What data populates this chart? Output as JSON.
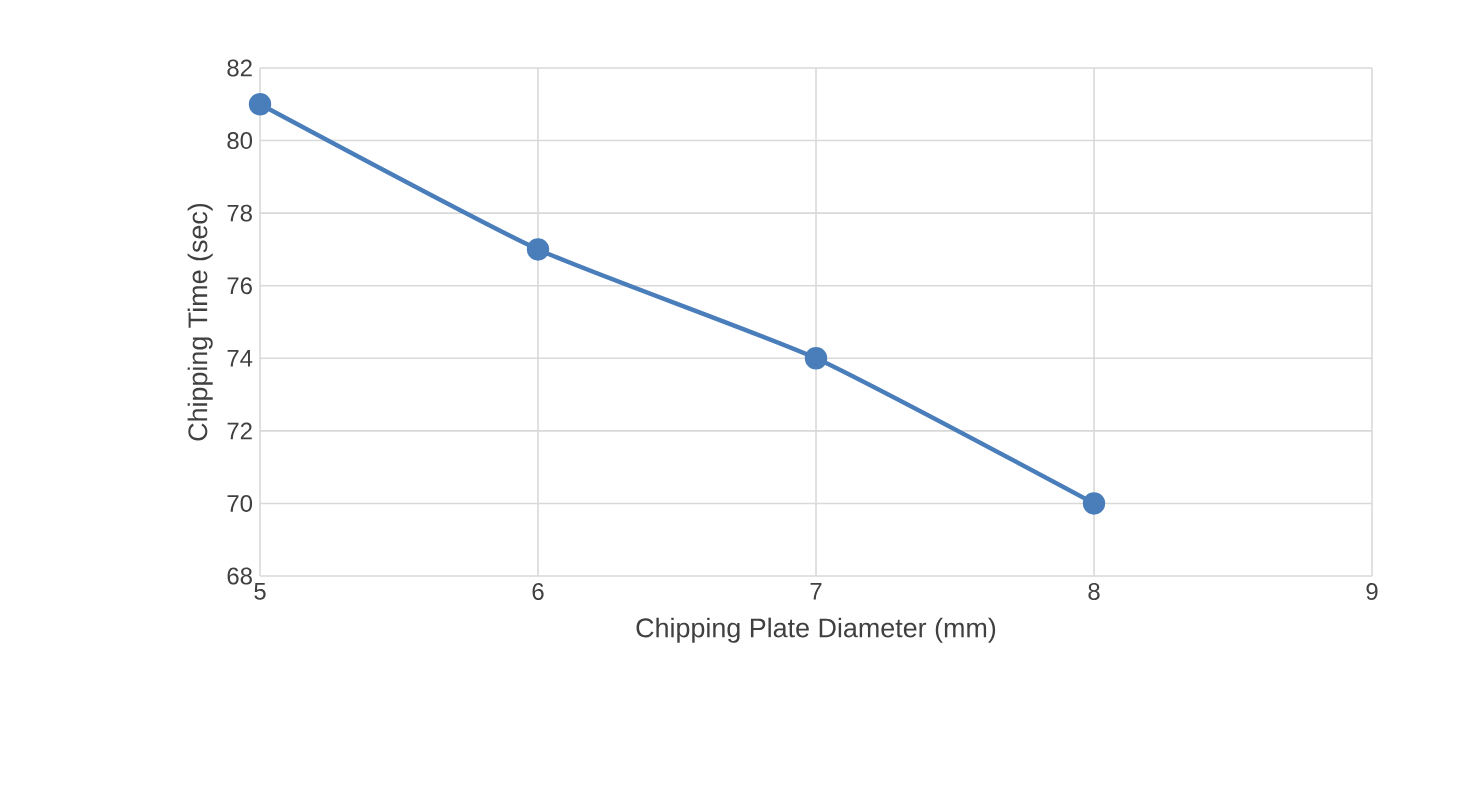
{
  "chart_data": {
    "type": "line",
    "xlabel": "Chipping Plate Diameter (mm)",
    "ylabel": "Chipping Time (sec)",
    "x": [
      5,
      6,
      7,
      8
    ],
    "series": [
      {
        "color": "#4a7ebb",
        "values": [
          81,
          77,
          74,
          70
        ]
      }
    ],
    "xlim": [
      5,
      9
    ],
    "ylim": [
      68,
      82
    ],
    "xticks": [
      5,
      6,
      7,
      8,
      9
    ],
    "yticks": [
      68,
      70,
      72,
      74,
      76,
      78,
      80,
      82
    ],
    "grid": true,
    "marker": "circle",
    "line_style": "solid"
  }
}
